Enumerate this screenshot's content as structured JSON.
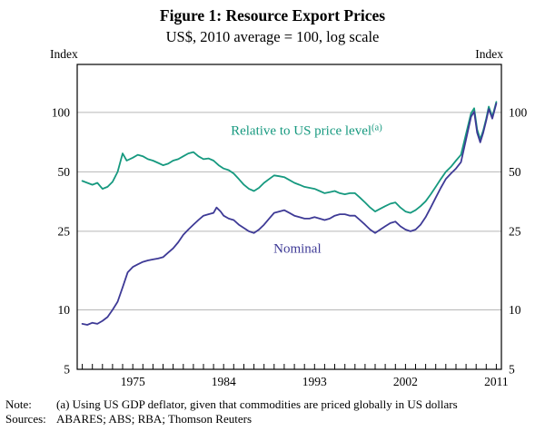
{
  "figure": {
    "title": "Figure 1: Resource Export Prices",
    "subtitle": "US$, 2010 average = 100, log scale",
    "axis_unit_left": "Index",
    "axis_unit_right": "Index"
  },
  "note": {
    "label": "Note:",
    "text": "(a) Using US GDP deflator, given that commodities are priced globally in US dollars"
  },
  "sources": {
    "label": "Sources:",
    "text": "ABARES; ABS; RBA; Thomson Reuters"
  },
  "chart_data": {
    "type": "line",
    "title": "Figure 1: Resource Export Prices",
    "subtitle": "US$, 2010 average = 100, log scale",
    "y_scale": "log",
    "ylabel": "Index",
    "grid": true,
    "legend_position": "on-chart",
    "xlim": [
      1969.5,
      2011.5
    ],
    "ylim": [
      5,
      175
    ],
    "y_ticks": [
      5,
      10,
      25,
      50,
      100
    ],
    "grid_values": [
      10,
      25,
      50,
      100
    ],
    "x_ticks": [
      1975,
      1984,
      1993,
      2002,
      2011
    ],
    "x_minor_tick_step": 1,
    "series": [
      {
        "name": "Relative to US price level",
        "sup": "(a)",
        "color": "#16997f",
        "label_pos": {
          "x": 1992.2,
          "y": 77
        },
        "points": [
          [
            1970,
            45
          ],
          [
            1970.5,
            44
          ],
          [
            1971,
            43
          ],
          [
            1971.5,
            44
          ],
          [
            1972,
            41
          ],
          [
            1972.5,
            42
          ],
          [
            1973,
            44.5
          ],
          [
            1973.5,
            50
          ],
          [
            1974,
            62
          ],
          [
            1974.4,
            57
          ],
          [
            1975,
            59
          ],
          [
            1975.5,
            61
          ],
          [
            1976,
            60
          ],
          [
            1976.5,
            58
          ],
          [
            1977,
            57
          ],
          [
            1977.5,
            55.5
          ],
          [
            1978,
            54
          ],
          [
            1978.5,
            55
          ],
          [
            1979,
            57
          ],
          [
            1979.5,
            58
          ],
          [
            1980,
            60
          ],
          [
            1980.5,
            62
          ],
          [
            1981,
            63
          ],
          [
            1981.5,
            60
          ],
          [
            1982,
            58
          ],
          [
            1982.5,
            58.5
          ],
          [
            1983,
            57
          ],
          [
            1983.5,
            54
          ],
          [
            1984,
            52
          ],
          [
            1984.5,
            51
          ],
          [
            1985,
            49
          ],
          [
            1985.5,
            46
          ],
          [
            1986,
            43
          ],
          [
            1986.5,
            41
          ],
          [
            1987,
            40
          ],
          [
            1987.5,
            41.5
          ],
          [
            1988,
            44
          ],
          [
            1988.5,
            46
          ],
          [
            1989,
            48
          ],
          [
            1989.5,
            47.5
          ],
          [
            1990,
            47
          ],
          [
            1990.5,
            45.5
          ],
          [
            1991,
            44
          ],
          [
            1991.5,
            43
          ],
          [
            1992,
            42
          ],
          [
            1992.5,
            41.5
          ],
          [
            1993,
            41
          ],
          [
            1993.5,
            40
          ],
          [
            1994,
            39
          ],
          [
            1994.5,
            39.5
          ],
          [
            1995,
            40
          ],
          [
            1995.5,
            39
          ],
          [
            1996,
            38.5
          ],
          [
            1996.5,
            39
          ],
          [
            1997,
            39
          ],
          [
            1997.5,
            37
          ],
          [
            1998,
            35
          ],
          [
            1998.5,
            33
          ],
          [
            1999,
            31.5
          ],
          [
            1999.5,
            32.5
          ],
          [
            2000,
            33.5
          ],
          [
            2000.5,
            34.5
          ],
          [
            2001,
            35
          ],
          [
            2001.5,
            33
          ],
          [
            2002,
            31.5
          ],
          [
            2002.5,
            31
          ],
          [
            2003,
            32
          ],
          [
            2003.5,
            33.5
          ],
          [
            2004,
            35.5
          ],
          [
            2004.5,
            38.5
          ],
          [
            2005,
            42
          ],
          [
            2005.5,
            46
          ],
          [
            2006,
            50
          ],
          [
            2006.5,
            53
          ],
          [
            2007,
            57
          ],
          [
            2007.5,
            61
          ],
          [
            2008,
            78
          ],
          [
            2008.5,
            99
          ],
          [
            2008.8,
            105
          ],
          [
            2009.1,
            82
          ],
          [
            2009.4,
            73
          ],
          [
            2009.7,
            81
          ],
          [
            2010,
            93
          ],
          [
            2010.25,
            107
          ],
          [
            2010.6,
            95
          ],
          [
            2011,
            113
          ]
        ]
      },
      {
        "name": "Nominal",
        "sup": "",
        "color": "#3e3a96",
        "label_pos": {
          "x": 1991.3,
          "y": 19.5
        },
        "points": [
          [
            1970,
            8.5
          ],
          [
            1970.5,
            8.4
          ],
          [
            1971,
            8.6
          ],
          [
            1971.5,
            8.5
          ],
          [
            1972,
            8.8
          ],
          [
            1972.5,
            9.2
          ],
          [
            1973,
            10
          ],
          [
            1973.5,
            11
          ],
          [
            1974,
            13
          ],
          [
            1974.5,
            15.5
          ],
          [
            1975,
            16.5
          ],
          [
            1975.5,
            17
          ],
          [
            1976,
            17.5
          ],
          [
            1976.5,
            17.8
          ],
          [
            1977,
            18
          ],
          [
            1977.5,
            18.2
          ],
          [
            1978,
            18.5
          ],
          [
            1978.5,
            19.5
          ],
          [
            1979,
            20.5
          ],
          [
            1979.5,
            22
          ],
          [
            1980,
            24
          ],
          [
            1980.5,
            25.5
          ],
          [
            1981,
            27
          ],
          [
            1981.5,
            28.5
          ],
          [
            1982,
            30
          ],
          [
            1982.5,
            30.5
          ],
          [
            1983,
            31
          ],
          [
            1983.3,
            33
          ],
          [
            1983.7,
            31.5
          ],
          [
            1984,
            30
          ],
          [
            1984.5,
            29
          ],
          [
            1985,
            28.5
          ],
          [
            1985.5,
            27
          ],
          [
            1986,
            26
          ],
          [
            1986.5,
            25
          ],
          [
            1987,
            24.5
          ],
          [
            1987.5,
            25.5
          ],
          [
            1988,
            27
          ],
          [
            1988.5,
            29
          ],
          [
            1989,
            31
          ],
          [
            1989.5,
            31.5
          ],
          [
            1990,
            32
          ],
          [
            1990.5,
            31
          ],
          [
            1991,
            30
          ],
          [
            1991.5,
            29.5
          ],
          [
            1992,
            29
          ],
          [
            1992.5,
            29
          ],
          [
            1993,
            29.5
          ],
          [
            1993.5,
            29
          ],
          [
            1994,
            28.5
          ],
          [
            1994.5,
            29
          ],
          [
            1995,
            30
          ],
          [
            1995.5,
            30.5
          ],
          [
            1996,
            30.5
          ],
          [
            1996.5,
            30
          ],
          [
            1997,
            30
          ],
          [
            1997.5,
            28.5
          ],
          [
            1998,
            27
          ],
          [
            1998.5,
            25.5
          ],
          [
            1999,
            24.5
          ],
          [
            1999.5,
            25.5
          ],
          [
            2000,
            26.5
          ],
          [
            2000.5,
            27.5
          ],
          [
            2001,
            28
          ],
          [
            2001.5,
            26.5
          ],
          [
            2002,
            25.5
          ],
          [
            2002.5,
            25
          ],
          [
            2003,
            25.5
          ],
          [
            2003.5,
            27
          ],
          [
            2004,
            29.5
          ],
          [
            2004.5,
            33
          ],
          [
            2005,
            37
          ],
          [
            2005.5,
            41.5
          ],
          [
            2006,
            46
          ],
          [
            2006.5,
            49
          ],
          [
            2007,
            52
          ],
          [
            2007.5,
            56
          ],
          [
            2008,
            73
          ],
          [
            2008.5,
            95
          ],
          [
            2008.8,
            101
          ],
          [
            2009.1,
            79
          ],
          [
            2009.4,
            70.5
          ],
          [
            2009.7,
            79
          ],
          [
            2010,
            91
          ],
          [
            2010.25,
            104
          ],
          [
            2010.6,
            93
          ],
          [
            2011,
            111
          ]
        ]
      }
    ]
  }
}
